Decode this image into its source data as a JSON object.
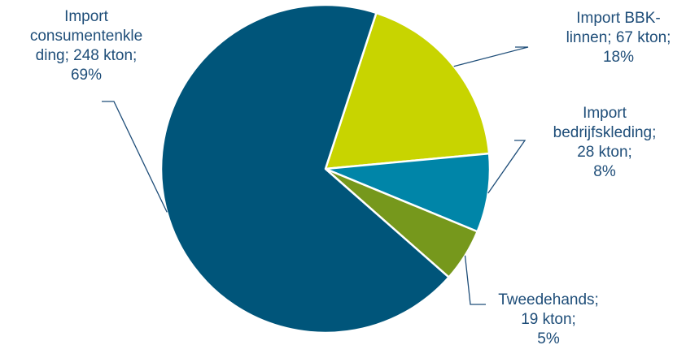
{
  "chart_data": {
    "type": "pie",
    "title": "",
    "unit": "kton",
    "start_angle_deg": 18,
    "direction": "clockwise",
    "slices": [
      {
        "category": "Import BBK-linnen",
        "value": 67,
        "percent": 18,
        "color": "#c8d400",
        "label_lines": [
          "Import BBK-",
          "linnen; 67 kton;",
          "18%"
        ]
      },
      {
        "category": "Import bedrijfskleding",
        "value": 28,
        "percent": 8,
        "color": "#0085a8",
        "label_lines": [
          "Import",
          "bedrijfskleding;",
          "28 kton;",
          "8%"
        ]
      },
      {
        "category": "Tweedehands",
        "value": 19,
        "percent": 5,
        "color": "#76981c",
        "label_lines": [
          "Tweedehands;",
          "19 kton;",
          "5%"
        ]
      },
      {
        "category": "Import consumentenkleding",
        "value": 248,
        "percent": 69,
        "color": "#00557a",
        "label_lines": [
          "Import",
          "consumentenkle",
          "ding; 248 kton;",
          "69%"
        ]
      }
    ]
  }
}
